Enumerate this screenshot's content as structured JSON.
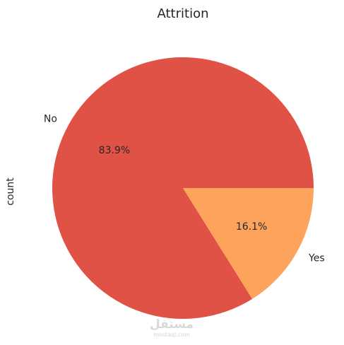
{
  "chart_data": {
    "type": "pie",
    "title": "Attrition",
    "ylabel": "count",
    "slices": [
      {
        "label": "No",
        "percent": 83.9,
        "pct_label": "83.9%",
        "color": "#e15246"
      },
      {
        "label": "Yes",
        "percent": 16.1,
        "pct_label": "16.1%",
        "color": "#fda35c"
      }
    ],
    "start_angle_deg": 0,
    "direction": "counterclockwise"
  },
  "watermark": {
    "arabic": "مستقل",
    "latin": "mostaql.com"
  }
}
